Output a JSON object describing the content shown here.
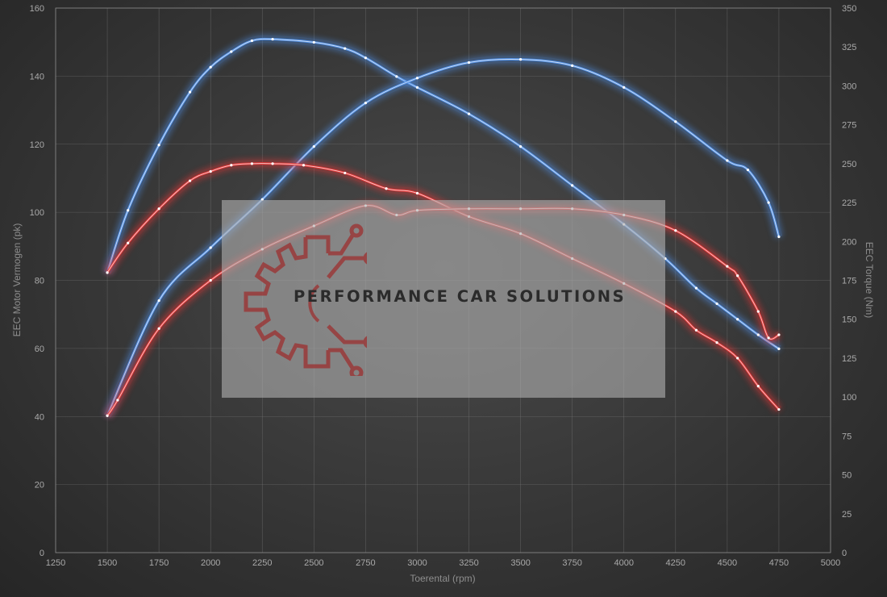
{
  "chart_data": {
    "type": "line",
    "xlabel": "Toerental (rpm)",
    "ylabel_left": "EEC Motor Vermogen (pk)",
    "ylabel_right": "EEC Torque (Nm)",
    "xlim": [
      1250,
      5000
    ],
    "ylim_left": [
      0,
      160
    ],
    "ylim_right": [
      0,
      350
    ],
    "xticks": [
      "1250",
      "1500",
      "1750",
      "2000",
      "2250",
      "2500",
      "2750",
      "3000",
      "3250",
      "3500",
      "3750",
      "4000",
      "4250",
      "4500",
      "4750",
      "5000"
    ],
    "yticks_left": [
      "0",
      "20",
      "40",
      "60",
      "80",
      "100",
      "120",
      "140",
      "160"
    ],
    "yticks_right": [
      "0",
      "25",
      "50",
      "75",
      "100",
      "125",
      "150",
      "175",
      "200",
      "225",
      "250",
      "275",
      "300",
      "325",
      "350"
    ],
    "grid": true,
    "series": [
      {
        "axis": "right",
        "color": "#4f8fe6",
        "x": [
          1500,
          1600,
          1750,
          1900,
          2000,
          2100,
          2200,
          2300,
          2500,
          2650,
          2750,
          2900,
          3000,
          3250,
          3500,
          3750,
          4000,
          4200,
          4350,
          4450,
          4550,
          4650,
          4750
        ],
        "y": [
          180,
          220,
          262,
          296,
          312,
          322,
          329,
          330,
          328,
          324,
          318,
          306,
          299,
          282,
          261,
          236,
          211,
          189,
          170,
          160,
          150,
          140,
          131
        ]
      },
      {
        "axis": "right",
        "color": "#4f8fe6",
        "x": [
          1500,
          1750,
          2000,
          2250,
          2500,
          2750,
          3000,
          3250,
          3500,
          3750,
          4000,
          4250,
          4500,
          4600,
          4700,
          4750
        ],
        "y": [
          88,
          162,
          196,
          227,
          261,
          289,
          305,
          315,
          317,
          313,
          299,
          277,
          252,
          246,
          225,
          203
        ]
      },
      {
        "axis": "right",
        "color": "#e53434",
        "x": [
          1500,
          1600,
          1750,
          1900,
          2000,
          2100,
          2200,
          2300,
          2450,
          2650,
          2850,
          3000,
          3250,
          3500,
          3750,
          4000,
          4250,
          4350,
          4450,
          4550,
          4650,
          4750
        ],
        "y": [
          180,
          199,
          221,
          239,
          245,
          249,
          250,
          250,
          249,
          244,
          234,
          231,
          216,
          205,
          189,
          173,
          155,
          143,
          135,
          125,
          107,
          92
        ]
      },
      {
        "axis": "right",
        "color": "#e53434",
        "x": [
          1500,
          1550,
          1750,
          2000,
          2250,
          2500,
          2750,
          2900,
          3000,
          3250,
          3500,
          3750,
          4000,
          4250,
          4500,
          4550,
          4650,
          4700,
          4750
        ],
        "y": [
          88,
          98,
          144,
          175,
          195,
          210,
          223,
          217,
          220,
          221,
          221,
          221,
          217,
          207,
          184,
          178,
          155,
          138,
          140
        ]
      }
    ]
  },
  "watermark": {
    "text": "PERFORMANCE CAR SOLUTIONS",
    "logo": "gear-circuit-logo"
  }
}
